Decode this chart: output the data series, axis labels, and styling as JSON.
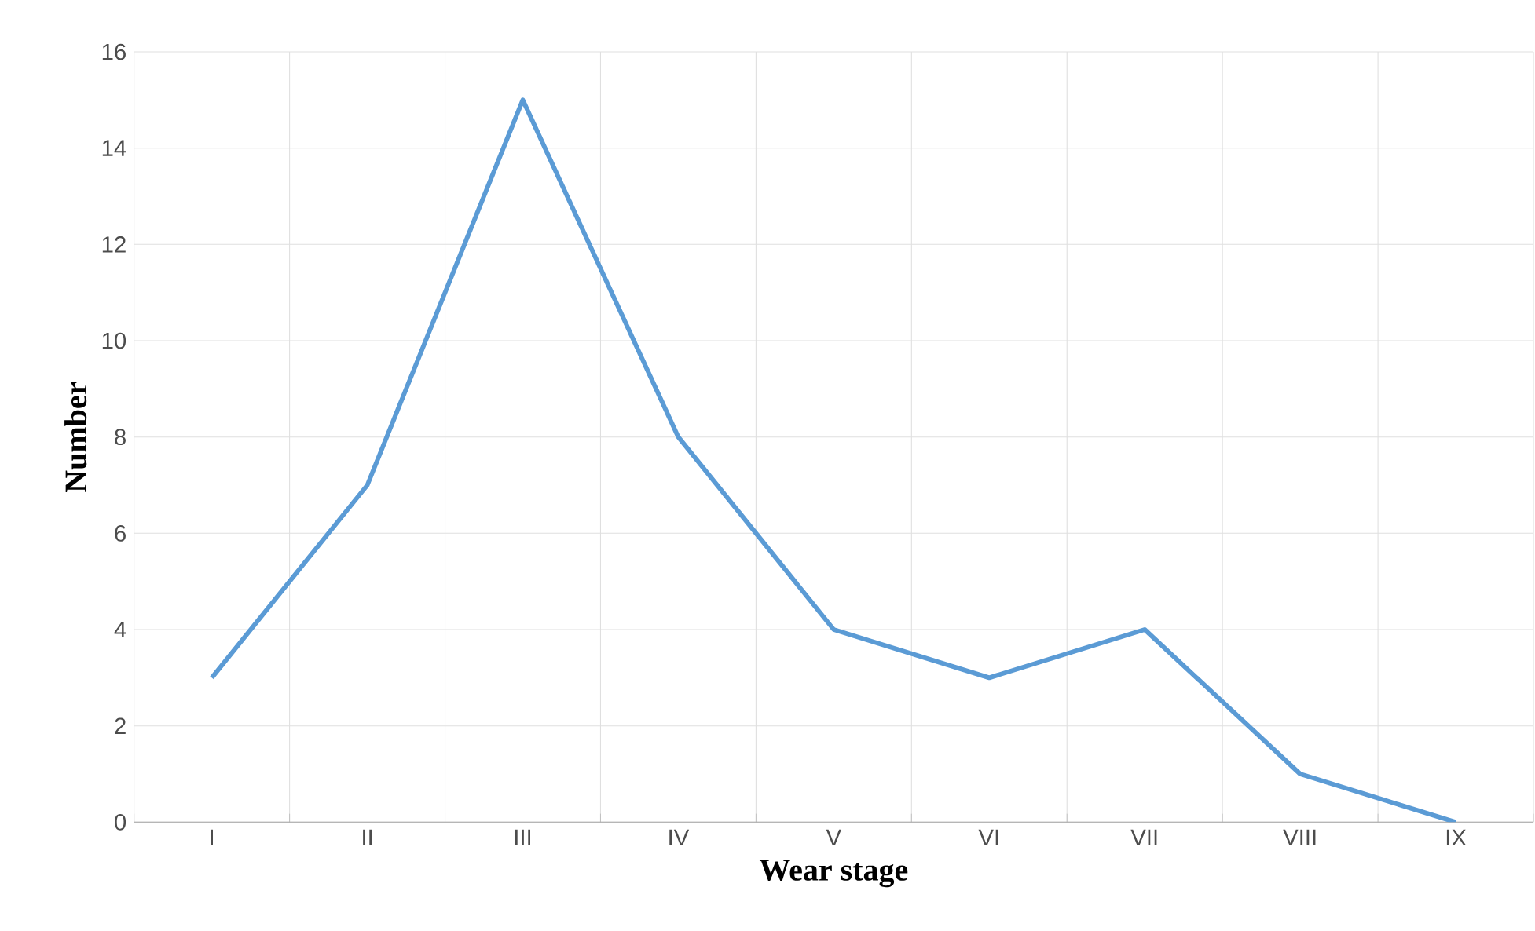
{
  "chart_data": {
    "type": "line",
    "xlabel": "Wear stage",
    "ylabel": "Number",
    "categories": [
      "I",
      "II",
      "III",
      "IV",
      "V",
      "VI",
      "VII",
      "VIII",
      "IX"
    ],
    "series": [
      {
        "color": "#5b9bd5",
        "values": [
          3,
          7,
          15,
          8,
          4,
          3,
          4,
          1,
          0
        ]
      }
    ],
    "ylim": [
      0,
      16
    ],
    "yticks": [
      0,
      2,
      4,
      6,
      8,
      10,
      12,
      14,
      16
    ],
    "grid": true,
    "marker": "none",
    "line_style": "solid"
  }
}
